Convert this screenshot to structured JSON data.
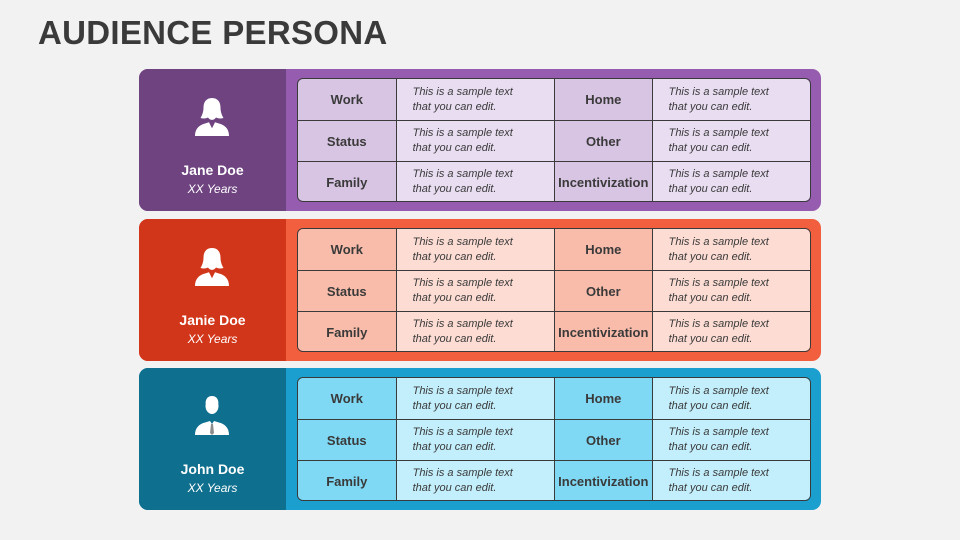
{
  "slide": {
    "title": "AUDIENCE PERSONA"
  },
  "personas": [
    {
      "name": "Jane Doe",
      "age": "XX Years",
      "icon": "female-user-icon",
      "colors": {
        "dark": "#6e4380",
        "frame": "#965cb0",
        "label_bg": "#d8c4e3",
        "text_bg": "#e9ddf1"
      },
      "rows": [
        {
          "label_a": "Work",
          "text_a": "This is a sample text that you can edit.",
          "label_b": "Home",
          "text_b": "This is a sample text that you can edit."
        },
        {
          "label_a": "Status",
          "text_a": "This is a sample text that you can edit.",
          "label_b": "Other",
          "text_b": "This is a sample text that you can edit."
        },
        {
          "label_a": "Family",
          "text_a": "This is a sample text that you can edit.",
          "label_b": "Incentivization",
          "text_b": "This is a sample text that you can edit."
        }
      ]
    },
    {
      "name": "Janie Doe",
      "age": "XX Years",
      "icon": "female-user-icon",
      "colors": {
        "dark": "#d2361a",
        "frame": "#f15f3f",
        "label_bg": "#f9bcaa",
        "text_bg": "#fcdcd3"
      },
      "rows": [
        {
          "label_a": "Work",
          "text_a": "This is a sample text that you can edit.",
          "label_b": "Home",
          "text_b": "This is a sample text that you can edit."
        },
        {
          "label_a": "Status",
          "text_a": "This is a sample text that you can edit.",
          "label_b": "Other",
          "text_b": "This is a sample text that you can edit."
        },
        {
          "label_a": "Family",
          "text_a": "This is a sample text that you can edit.",
          "label_b": "Incentivization",
          "text_b": "This is a sample text that you can edit."
        }
      ]
    },
    {
      "name": "John Doe",
      "age": "XX Years",
      "icon": "male-user-icon",
      "colors": {
        "dark": "#0f6f8e",
        "frame": "#1a9fce",
        "label_bg": "#7fd9f5",
        "text_bg": "#c3eefb"
      },
      "rows": [
        {
          "label_a": "Work",
          "text_a": "This is a sample text that you can edit.",
          "label_b": "Home",
          "text_b": "This is a sample text that you can edit."
        },
        {
          "label_a": "Status",
          "text_a": "This is a sample text that you can edit.",
          "label_b": "Other",
          "text_b": "This is a sample text that you can edit."
        },
        {
          "label_a": "Family",
          "text_a": "This is a sample text that you can edit.",
          "label_b": "Incentivization",
          "text_b": "This is a sample text that you can edit."
        }
      ]
    }
  ]
}
